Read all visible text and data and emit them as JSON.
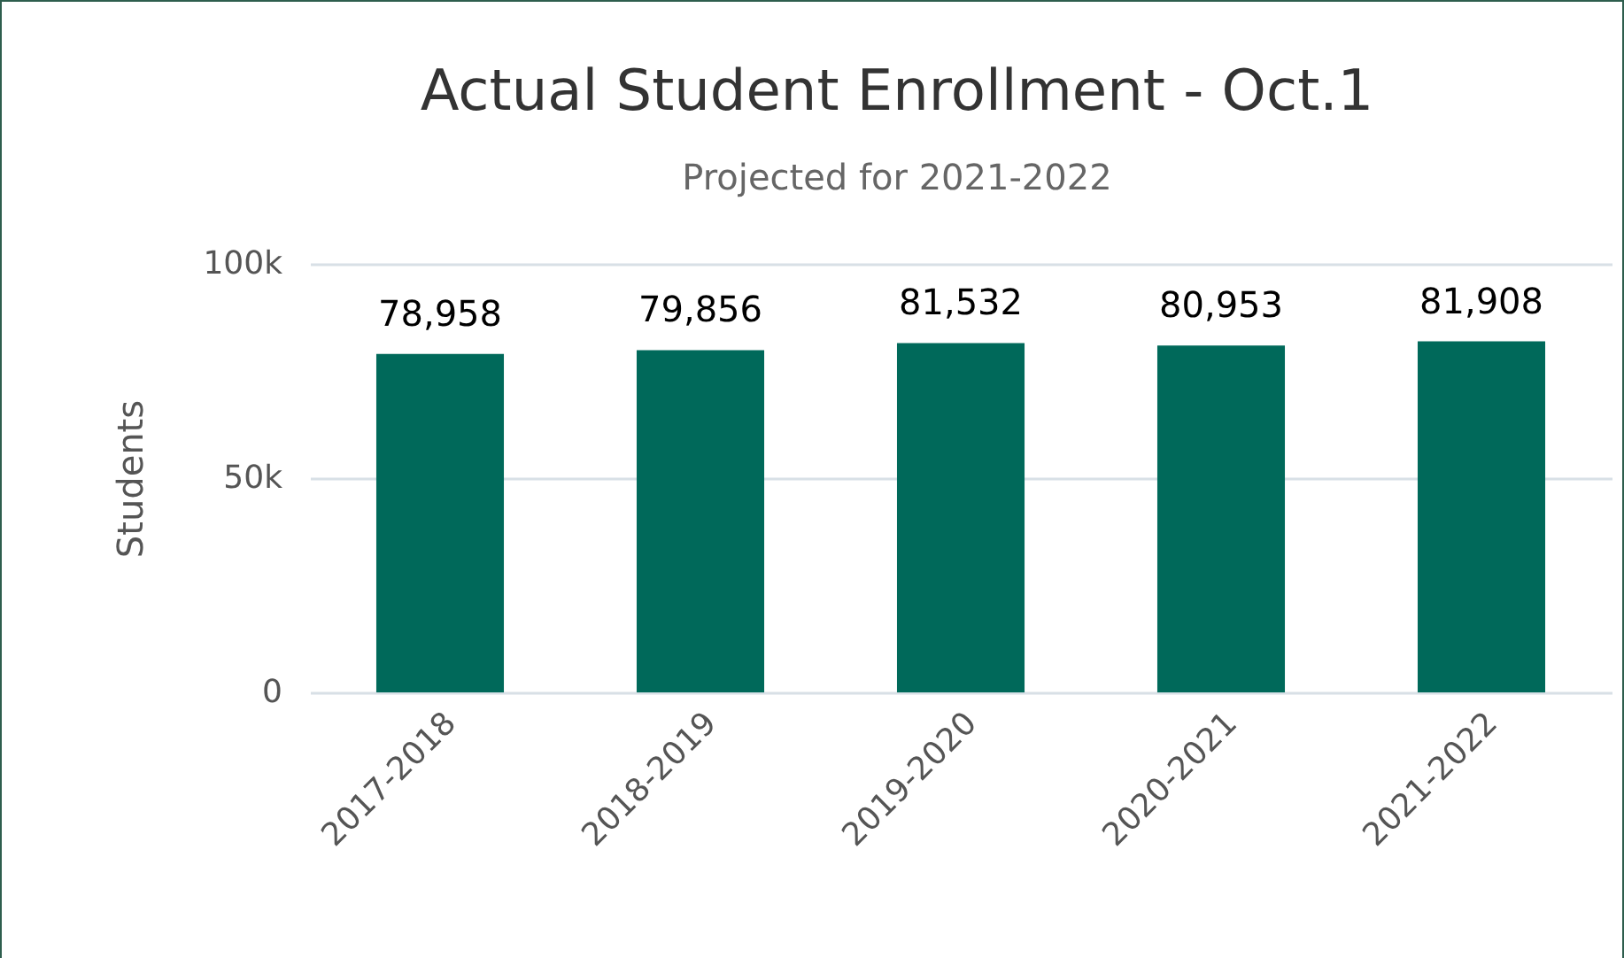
{
  "chart_data": {
    "type": "bar",
    "title": "Actual Student Enrollment - Oct.1",
    "subtitle": "Projected for 2021-2022",
    "ylabel": "Students",
    "categories": [
      "2017-2018",
      "2018-2019",
      "2019-2020",
      "2020-2021",
      "2021-2022"
    ],
    "values": [
      78958,
      79856,
      81532,
      80953,
      81908
    ],
    "color": "#00695a",
    "ylim": [
      0,
      100000
    ],
    "yticks": [
      {
        "value": 0,
        "label": "0"
      },
      {
        "value": 50000,
        "label": "50k"
      },
      {
        "value": 100000,
        "label": "100k"
      }
    ],
    "value_labels": [
      "78,958",
      "79,856",
      "81,532",
      "80,953",
      "81,908"
    ],
    "grid": "y"
  }
}
